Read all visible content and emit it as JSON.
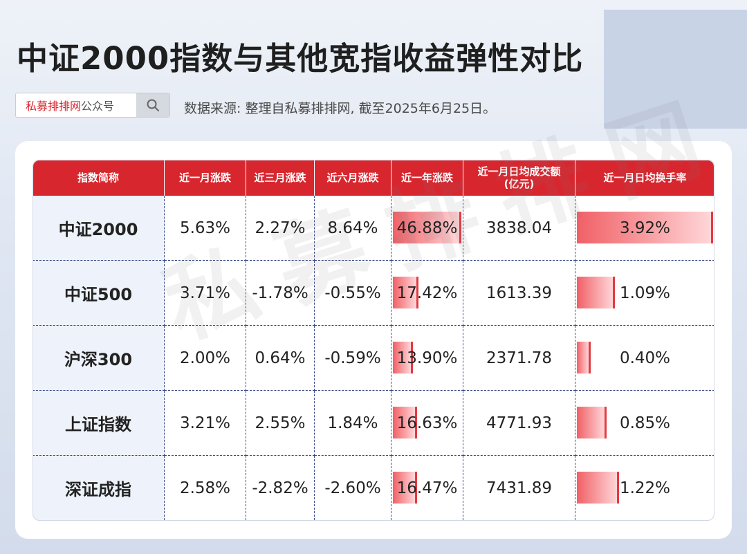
{
  "title": "中证2000指数与其他宽指收益弹性对比",
  "search": {
    "brand_text": "私募排排网",
    "suffix_text": "公众号",
    "icon": "search-icon"
  },
  "source_note": "数据来源: 整理自私募排排网, 截至2025年6月25日。",
  "watermark": "私募排排网",
  "colors": {
    "header_red": "#d8262e",
    "bar_gradient_start": "#f06066",
    "bar_gradient_end": "#ffd6d8"
  },
  "chart_data": {
    "type": "table",
    "columns": [
      "指数简称",
      "近一月涨跌",
      "近三月涨跌",
      "近六月涨跌",
      "近一年涨跌",
      "近一月日均成交额(亿元)",
      "近一月日均换手率"
    ],
    "rows": [
      {
        "name": "中证2000",
        "m1": "5.63%",
        "m3": "2.27%",
        "m6": "8.64%",
        "y1": "46.88%",
        "turnover": "3838.04",
        "rate": "3.92%",
        "y1_value": 46.88,
        "rate_value": 3.92
      },
      {
        "name": "中证500",
        "m1": "3.71%",
        "m3": "-1.78%",
        "m6": "-0.55%",
        "y1": "17.42%",
        "turnover": "1613.39",
        "rate": "1.09%",
        "y1_value": 17.42,
        "rate_value": 1.09
      },
      {
        "name": "沪深300",
        "m1": "2.00%",
        "m3": "0.64%",
        "m6": "-0.59%",
        "y1": "13.90%",
        "turnover": "2371.78",
        "rate": "0.40%",
        "y1_value": 13.9,
        "rate_value": 0.4
      },
      {
        "name": "上证指数",
        "m1": "3.21%",
        "m3": "2.55%",
        "m6": "1.84%",
        "y1": "16.63%",
        "turnover": "4771.93",
        "rate": "0.85%",
        "y1_value": 16.63,
        "rate_value": 0.85
      },
      {
        "name": "深证成指",
        "m1": "2.58%",
        "m3": "-2.82%",
        "m6": "-2.60%",
        "y1": "16.47%",
        "turnover": "7431.89",
        "rate": "1.22%",
        "y1_value": 16.47,
        "rate_value": 1.22
      }
    ],
    "bar_scale": {
      "y1_max": 46.88,
      "rate_max": 3.92
    }
  }
}
